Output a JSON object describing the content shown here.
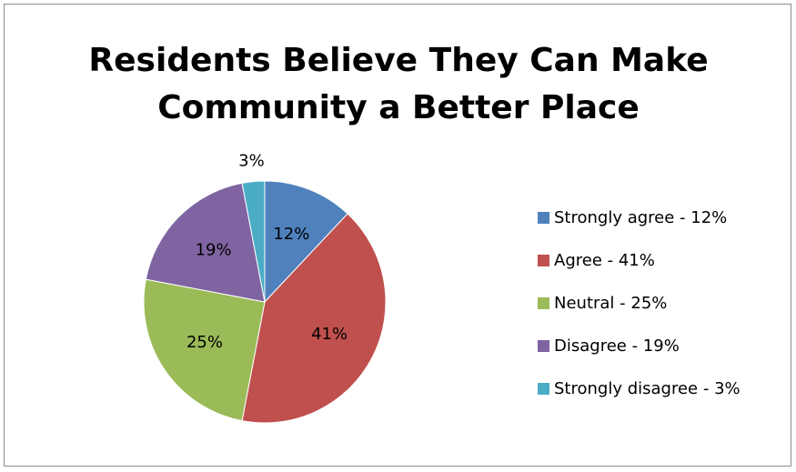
{
  "chart_data": {
    "type": "pie",
    "title": "Residents Believe They Can Make Community a Better Place",
    "title_lines": [
      "Residents Believe They Can Make",
      "Community a Better Place"
    ],
    "legend_position": "right",
    "slices": [
      {
        "label": "Strongly agree - 12%",
        "value": 12,
        "data_label": "12%",
        "color": "#4f81bd"
      },
      {
        "label": "Agree - 41%",
        "value": 41,
        "data_label": "41%",
        "color": "#c0504d"
      },
      {
        "label": "Neutral - 25%",
        "value": 25,
        "data_label": "25%",
        "color": "#9bbb59"
      },
      {
        "label": "Disagree - 19%",
        "value": 19,
        "data_label": "19%",
        "color": "#8064a2"
      },
      {
        "label": "Strongly disagree - 3%",
        "value": 3,
        "data_label": "3%",
        "color": "#4bacc6"
      }
    ]
  }
}
